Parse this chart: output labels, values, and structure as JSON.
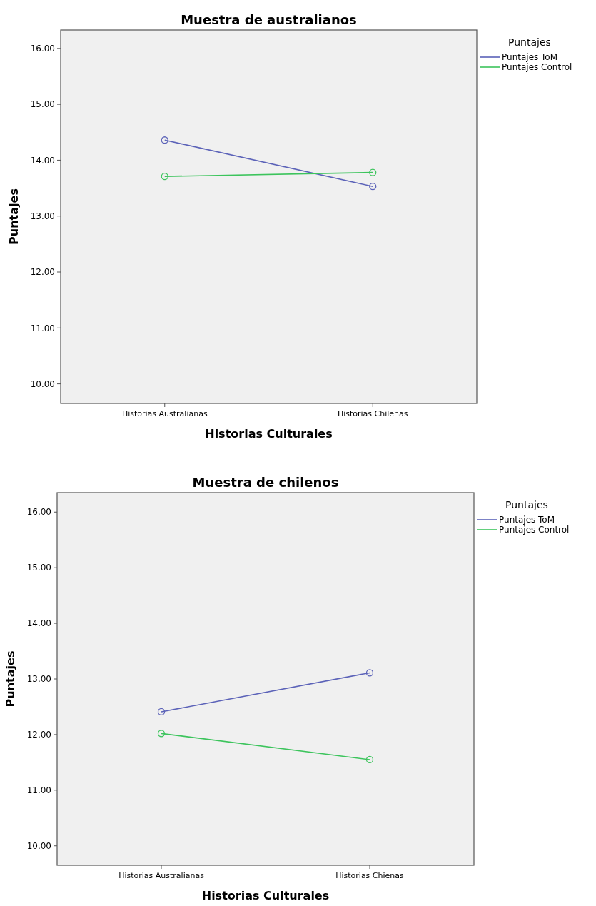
{
  "chart_data": [
    {
      "type": "line",
      "title": "Muestra de australianos",
      "xlabel": "Historias Culturales",
      "ylabel": "Puntajes",
      "legend_title": "Puntajes",
      "categories": [
        "Historias Australianas",
        "Historias Chilenas"
      ],
      "ylim": [
        9.65,
        16.33
      ],
      "yticks": [
        {
          "value": 10,
          "label": "10.00"
        },
        {
          "value": 11,
          "label": "11.00"
        },
        {
          "value": 12,
          "label": "12.00"
        },
        {
          "value": 13,
          "label": "13.00"
        },
        {
          "value": 14,
          "label": "14.00"
        },
        {
          "value": 15,
          "label": "15.00"
        },
        {
          "value": 16,
          "label": "16.00"
        }
      ],
      "legend": "top right",
      "marker": "circle",
      "grid": false,
      "series": [
        {
          "name": "Puntajes ToM",
          "color": "#5b62b8",
          "values": [
            14.36,
            13.53
          ]
        },
        {
          "name": "Puntajes Control",
          "color": "#3cc45c",
          "values": [
            13.71,
            13.78
          ]
        }
      ]
    },
    {
      "type": "line",
      "title": "Muestra de chilenos",
      "xlabel": "Historias Culturales",
      "ylabel": "Puntajes",
      "legend_title": "Puntajes",
      "categories": [
        "Historias Australianas",
        "Historias Chienas"
      ],
      "ylim": [
        9.65,
        16.35
      ],
      "yticks": [
        {
          "value": 10,
          "label": "10.00"
        },
        {
          "value": 11,
          "label": "11.00"
        },
        {
          "value": 12,
          "label": "12.00"
        },
        {
          "value": 13,
          "label": "13.00"
        },
        {
          "value": 14,
          "label": "14.00"
        },
        {
          "value": 15,
          "label": "15.00"
        },
        {
          "value": 16,
          "label": "16.00"
        }
      ],
      "legend": "top right",
      "marker": "circle",
      "grid": false,
      "series": [
        {
          "name": "Puntajes ToM",
          "color": "#5b62b8",
          "values": [
            12.41,
            13.11
          ]
        },
        {
          "name": "Puntajes Control",
          "color": "#3cc45c",
          "values": [
            12.02,
            11.55
          ]
        }
      ]
    }
  ]
}
